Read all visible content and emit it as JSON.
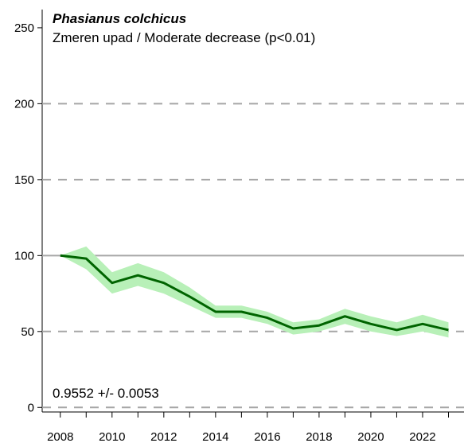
{
  "chart_data": {
    "type": "line",
    "title": "Phasianus colchicus",
    "subtitle": "Zmeren upad / Moderate decrease (p<0.01)",
    "annotation": "0.9552 +/- 0.0053",
    "xlabel": "",
    "ylabel": "",
    "xlim": [
      2007.3,
      2023.6
    ],
    "ylim": [
      -3,
      262
    ],
    "x_ticks": [
      2008,
      2009,
      2010,
      2011,
      2012,
      2013,
      2014,
      2015,
      2016,
      2017,
      2018,
      2019,
      2020,
      2021,
      2022,
      2023
    ],
    "x_tick_labels": [
      {
        "x": 2008,
        "label": "2008"
      },
      {
        "x": 2010,
        "label": "2010"
      },
      {
        "x": 2012,
        "label": "2012"
      },
      {
        "x": 2014,
        "label": "2014"
      },
      {
        "x": 2016,
        "label": "2016"
      },
      {
        "x": 2018,
        "label": "2018"
      },
      {
        "x": 2020,
        "label": "2020"
      },
      {
        "x": 2022,
        "label": "2022"
      }
    ],
    "y_ticks": [
      0,
      50,
      100,
      150,
      200,
      250
    ],
    "y_tick_labels": [
      "0",
      "50",
      "100",
      "150",
      "200",
      "250"
    ],
    "dashed_gridlines": [
      0,
      50,
      150,
      200
    ],
    "reference_line": 100,
    "grid": true,
    "series": [
      {
        "color": "#006400",
        "band_color": "#b8f0b8",
        "x": [
          2008,
          2009,
          2010,
          2011,
          2012,
          2013,
          2014,
          2015,
          2016,
          2017,
          2018,
          2019,
          2020,
          2021,
          2022,
          2023
        ],
        "y": [
          100,
          98,
          82,
          87,
          82,
          73,
          63,
          63,
          59,
          52,
          54,
          60,
          55,
          51,
          55,
          51
        ],
        "lower": [
          100,
          91,
          75,
          80,
          75,
          67,
          59,
          59,
          55,
          48,
          50,
          55,
          50,
          47,
          50,
          46
        ],
        "upper": [
          100,
          106,
          89,
          95,
          89,
          79,
          67,
          67,
          63,
          56,
          58,
          65,
          60,
          56,
          61,
          56
        ]
      }
    ]
  }
}
